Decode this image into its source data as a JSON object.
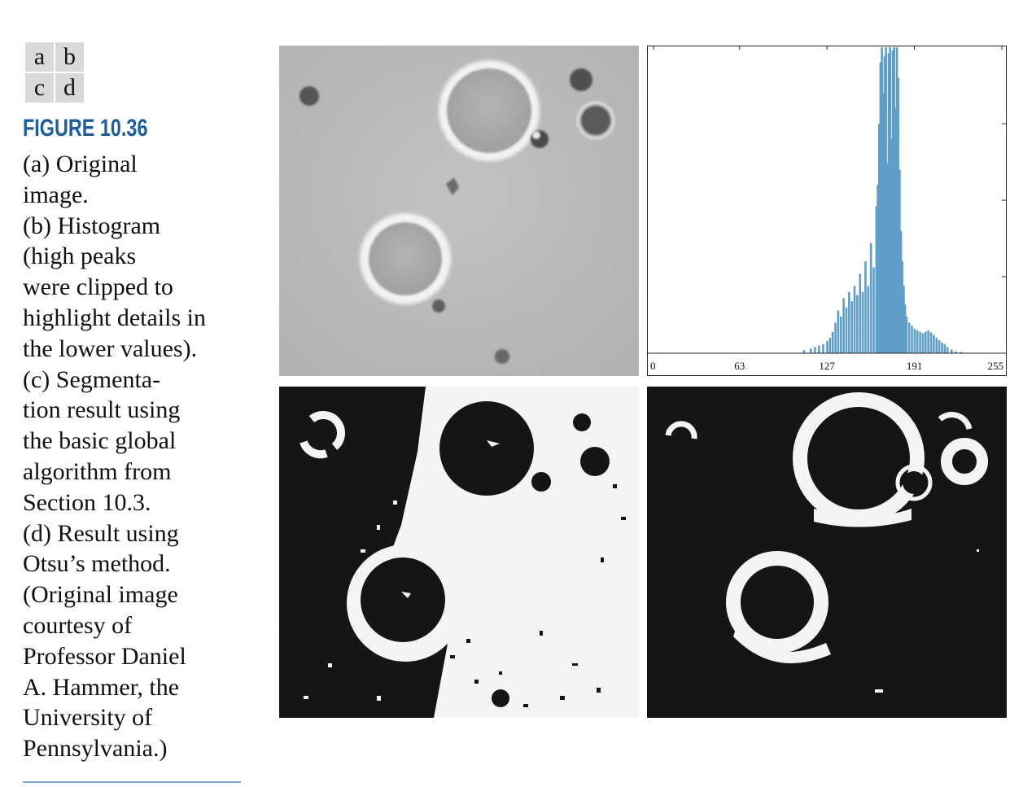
{
  "panel_key": [
    "a",
    "b",
    "c",
    "d"
  ],
  "figure_label": "FIGURE 10.36",
  "caption_lines": [
    "(a) Original",
    "image.",
    "(b) Histogram",
    "(high peaks",
    "were clipped to",
    "highlight details in",
    "the lower values).",
    "(c) Segmenta-",
    "tion result using",
    "the basic global",
    "algorithm from",
    "Section 10.3.",
    "(d) Result using",
    "Otsu’s method.",
    "(Original image",
    "courtesy of",
    "Professor Daniel",
    "A. Hammer, the",
    "University of",
    "Pennsylvania.)"
  ],
  "colors": {
    "figure_label": "#1d5d9b",
    "histogram_bars": "#5e9ec9",
    "rule": "#7aa7cf"
  },
  "chart_data": {
    "type": "bar",
    "title": "",
    "xlabel": "",
    "ylabel": "",
    "x_ticks": [
      0,
      63,
      127,
      191,
      255
    ],
    "xlim": [
      0,
      255
    ],
    "ylim": [
      0,
      1
    ],
    "y_values_note": "",
    "bins": [
      [
        110,
        0.01
      ],
      [
        115,
        0.015
      ],
      [
        118,
        0.02
      ],
      [
        121,
        0.025
      ],
      [
        124,
        0.03
      ],
      [
        127,
        0.04
      ],
      [
        129,
        0.05
      ],
      [
        131,
        0.07
      ],
      [
        133,
        0.1
      ],
      [
        135,
        0.14
      ],
      [
        137,
        0.12
      ],
      [
        139,
        0.18
      ],
      [
        141,
        0.15
      ],
      [
        143,
        0.2
      ],
      [
        145,
        0.17
      ],
      [
        147,
        0.22
      ],
      [
        149,
        0.19
      ],
      [
        151,
        0.26
      ],
      [
        153,
        0.2
      ],
      [
        155,
        0.3
      ],
      [
        157,
        0.22
      ],
      [
        159,
        0.36
      ],
      [
        161,
        0.28
      ],
      [
        163,
        0.48
      ],
      [
        164,
        0.55
      ],
      [
        165,
        0.75
      ],
      [
        166,
        0.95
      ],
      [
        167,
        1.0
      ],
      [
        168,
        0.85
      ],
      [
        169,
        0.97
      ],
      [
        170,
        1.0
      ],
      [
        171,
        0.62
      ],
      [
        172,
        0.98
      ],
      [
        173,
        1.0
      ],
      [
        174,
        0.7
      ],
      [
        175,
        0.99
      ],
      [
        176,
        1.0
      ],
      [
        177,
        0.8
      ],
      [
        178,
        1.0
      ],
      [
        179,
        0.9
      ],
      [
        180,
        0.6
      ],
      [
        181,
        0.4
      ],
      [
        182,
        0.3
      ],
      [
        183,
        0.22
      ],
      [
        184,
        0.16
      ],
      [
        185,
        0.12
      ],
      [
        187,
        0.1
      ],
      [
        189,
        0.09
      ],
      [
        191,
        0.08
      ],
      [
        193,
        0.075
      ],
      [
        195,
        0.07
      ],
      [
        197,
        0.065
      ],
      [
        199,
        0.07
      ],
      [
        201,
        0.075
      ],
      [
        203,
        0.068
      ],
      [
        205,
        0.06
      ],
      [
        207,
        0.05
      ],
      [
        209,
        0.042
      ],
      [
        211,
        0.035
      ],
      [
        213,
        0.03
      ],
      [
        215,
        0.02
      ],
      [
        218,
        0.012
      ],
      [
        221,
        0.006
      ],
      [
        225,
        0.004
      ]
    ]
  }
}
